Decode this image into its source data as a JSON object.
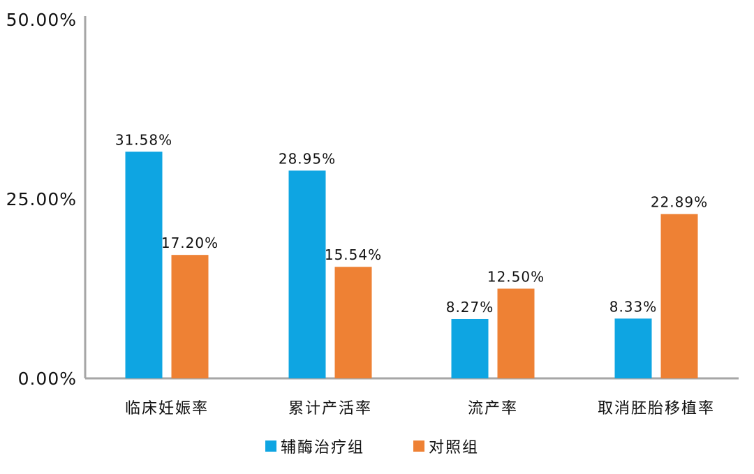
{
  "chart_data": {
    "type": "bar",
    "categories": [
      "临床妊娠率",
      "累计产活率",
      "流产率",
      "取消胚胎移植率"
    ],
    "series": [
      {
        "name": "辅酶治疗组",
        "values": [
          31.58,
          28.95,
          8.27,
          8.33
        ],
        "labels": [
          "31.58%",
          "28.95%",
          "8.27%",
          "8.33%"
        ],
        "color": "#0ea5e2"
      },
      {
        "name": "对照组",
        "values": [
          17.2,
          15.54,
          12.5,
          22.89
        ],
        "labels": [
          "17.20%",
          "15.54%",
          "12.50%",
          "22.89%"
        ],
        "color": "#ee8134"
      }
    ],
    "yticks": [
      0,
      25,
      50
    ],
    "ytick_labels": [
      "0.00%",
      "25.00%",
      "50.00%"
    ],
    "ylim": [
      0,
      50
    ],
    "grid": false,
    "legend_position": "bottom-center",
    "axis_color": "#a6a6a6"
  }
}
